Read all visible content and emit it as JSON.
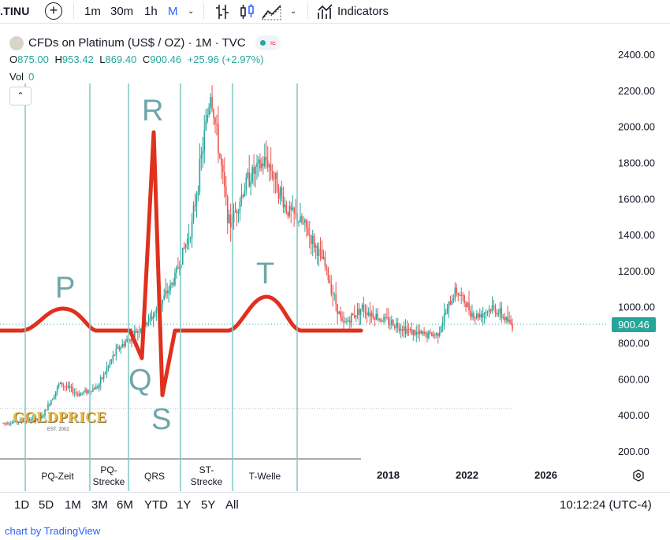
{
  "toolbar": {
    "symbol": ".TINU",
    "timeframes": [
      "1m",
      "30m",
      "1h",
      "M"
    ],
    "active_timeframe": "M",
    "indicators_label": "Indicators"
  },
  "legend": {
    "title": "CFDs on Platinum (US$ / OZ) · 1M · TVC",
    "open_label": "O",
    "open": "875.00",
    "high_label": "H",
    "high": "953.42",
    "low_label": "L",
    "low": "869.40",
    "close_label": "C",
    "close": "900.46",
    "change": "+25.96 (+2.97%)",
    "vol_label": "Vol",
    "vol": "0"
  },
  "annotations": {
    "letters": [
      "P",
      "Q",
      "R",
      "S",
      "T"
    ],
    "phases": [
      {
        "label": "PQ-Zeit"
      },
      {
        "label": "PQ-\nStrecke"
      },
      {
        "label": "QRS"
      },
      {
        "label": "ST-\nStrecke"
      },
      {
        "label": "T-Welle"
      }
    ],
    "watermark": "GOLDPRICE",
    "watermark_sub": "EST. 2002"
  },
  "bottom": {
    "ranges": [
      "1D",
      "5D",
      "1M",
      "3M",
      "6M",
      "YTD",
      "1Y",
      "5Y",
      "All"
    ],
    "clock": "10:12:24 (UTC-4)",
    "credit": "chart by TradingView"
  },
  "colors": {
    "up": "#26a69a",
    "down": "#ef5350",
    "ecg": "#e0301e",
    "guide": "#7fc9c4",
    "last_price_bg": "#26a69a"
  },
  "chart_data": {
    "type": "candlestick",
    "title": "CFDs on Platinum (US$ / OZ) · 1M · TVC",
    "y_ticks": [
      200,
      400,
      600,
      800,
      1000,
      1200,
      1400,
      1600,
      1800,
      2000,
      2200,
      2400
    ],
    "y_tick_labels": [
      "200.00",
      "400.00",
      "600.00",
      "800.00",
      "1000.00",
      "1200.00",
      "1400.00",
      "1600.00",
      "1800.00",
      "2000.00",
      "2200.00",
      "2400.00"
    ],
    "ylim": [
      160,
      2460
    ],
    "x_tick_labels": [
      "2018",
      "2022",
      "2026"
    ],
    "last_price": "900.46",
    "series": [
      {
        "period": 1997,
        "value": 360
      },
      {
        "period": 1998,
        "value": 370
      },
      {
        "period": 1999,
        "value": 380
      },
      {
        "period": 2000,
        "value": 580
      },
      {
        "period": 2001,
        "value": 520
      },
      {
        "period": 2002,
        "value": 560
      },
      {
        "period": 2003,
        "value": 760
      },
      {
        "period": 2004,
        "value": 860
      },
      {
        "period": 2005,
        "value": 960
      },
      {
        "period": 2006,
        "value": 1140
      },
      {
        "period": 2007,
        "value": 1450
      },
      {
        "period": 2008,
        "value": 2200
      },
      {
        "period": 2009,
        "value": 1450
      },
      {
        "period": 2010,
        "value": 1720
      },
      {
        "period": 2011,
        "value": 1820
      },
      {
        "period": 2012,
        "value": 1550
      },
      {
        "period": 2013,
        "value": 1450
      },
      {
        "period": 2014,
        "value": 1250
      },
      {
        "period": 2015,
        "value": 900
      },
      {
        "period": 2016,
        "value": 1000
      },
      {
        "period": 2017,
        "value": 940
      },
      {
        "period": 2018,
        "value": 900
      },
      {
        "period": 2019,
        "value": 850
      },
      {
        "period": 2020,
        "value": 850
      },
      {
        "period": 2021,
        "value": 1100
      },
      {
        "period": 2022,
        "value": 950
      },
      {
        "period": 2023,
        "value": 1000
      },
      {
        "period": 2024,
        "value": 900
      }
    ]
  }
}
